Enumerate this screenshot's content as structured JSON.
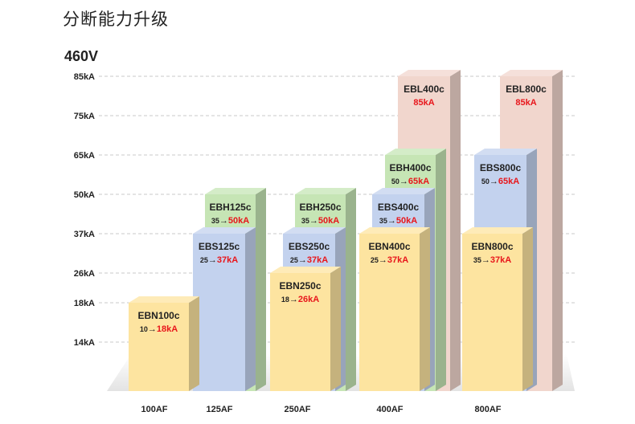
{
  "title": "分断能力升级",
  "voltage": "460V",
  "chart_data": {
    "type": "bar",
    "y_ticks": [
      "14kA",
      "18kA",
      "26kA",
      "37kA",
      "50kA",
      "65kA",
      "75kA",
      "85kA"
    ],
    "categories": [
      "100AF",
      "125AF",
      "250AF",
      "400AF",
      "800AF"
    ],
    "bars": [
      {
        "category": "100AF",
        "series": "EBN",
        "name": "EBN100c",
        "old": "10",
        "arrow": "→",
        "new": "18kA",
        "value": 18
      },
      {
        "category": "125AF",
        "series": "EBH",
        "name": "EBH125c",
        "old": "35",
        "arrow": "→",
        "new": "50kA",
        "value": 50
      },
      {
        "category": "125AF",
        "series": "EBS",
        "name": "EBS125c",
        "old": "25",
        "arrow": "→",
        "new": "37kA",
        "value": 37
      },
      {
        "category": "250AF",
        "series": "EBH",
        "name": "EBH250c",
        "old": "35",
        "arrow": "→",
        "new": "50kA",
        "value": 50
      },
      {
        "category": "250AF",
        "series": "EBS",
        "name": "EBS250c",
        "old": "25",
        "arrow": "→",
        "new": "37kA",
        "value": 37
      },
      {
        "category": "250AF",
        "series": "EBN",
        "name": "EBN250c",
        "old": "18",
        "arrow": "→",
        "new": "26kA",
        "value": 26
      },
      {
        "category": "400AF",
        "series": "EBL",
        "name": "EBL400c",
        "old": "",
        "arrow": "",
        "new": "85kA",
        "value": 85
      },
      {
        "category": "400AF",
        "series": "EBH",
        "name": "EBH400c",
        "old": "50",
        "arrow": "→",
        "new": "65kA",
        "value": 65
      },
      {
        "category": "400AF",
        "series": "EBS",
        "name": "EBS400c",
        "old": "35",
        "arrow": "→",
        "new": "50kA",
        "value": 50
      },
      {
        "category": "400AF",
        "series": "EBN",
        "name": "EBN400c",
        "old": "25",
        "arrow": "→",
        "new": "37kA",
        "value": 37
      },
      {
        "category": "800AF",
        "series": "EBL",
        "name": "EBL800c",
        "old": "",
        "arrow": "",
        "new": "85kA",
        "value": 85
      },
      {
        "category": "800AF",
        "series": "EBS",
        "name": "EBS800c",
        "old": "50",
        "arrow": "→",
        "new": "65kA",
        "value": 65
      },
      {
        "category": "800AF",
        "series": "EBN",
        "name": "EBN800c",
        "old": "35",
        "arrow": "→",
        "new": "37kA",
        "value": 37
      }
    ],
    "colors": {
      "EBN": "#fde4a0",
      "EBS": "#c3d2ee",
      "EBH": "#c6e5b5",
      "EBL": "#f1d6cd",
      "highlight": "#e8161b"
    },
    "grid": true
  }
}
